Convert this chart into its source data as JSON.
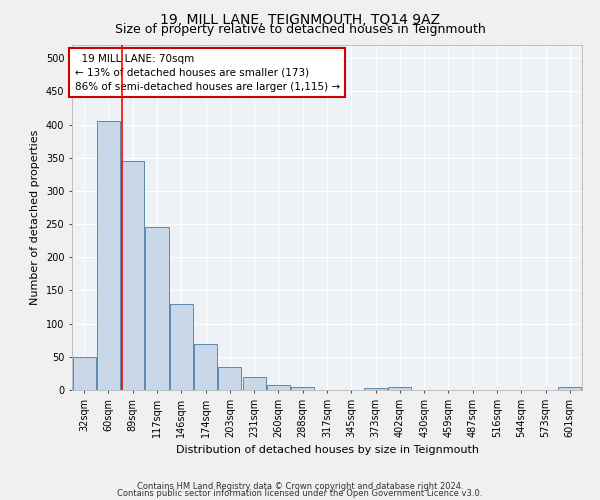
{
  "title": "19, MILL LANE, TEIGNMOUTH, TQ14 9AZ",
  "subtitle": "Size of property relative to detached houses in Teignmouth",
  "xlabel": "Distribution of detached houses by size in Teignmouth",
  "ylabel": "Number of detached properties",
  "footnote1": "Contains HM Land Registry data © Crown copyright and database right 2024.",
  "footnote2": "Contains public sector information licensed under the Open Government Licence v3.0.",
  "bar_labels": [
    "32sqm",
    "60sqm",
    "89sqm",
    "117sqm",
    "146sqm",
    "174sqm",
    "203sqm",
    "231sqm",
    "260sqm",
    "288sqm",
    "317sqm",
    "345sqm",
    "373sqm",
    "402sqm",
    "430sqm",
    "459sqm",
    "487sqm",
    "516sqm",
    "544sqm",
    "573sqm",
    "601sqm"
  ],
  "bar_values": [
    50,
    405,
    345,
    245,
    130,
    70,
    35,
    20,
    7,
    5,
    0,
    0,
    3,
    5,
    0,
    0,
    0,
    0,
    0,
    0,
    5
  ],
  "bar_color": "#c8d8e8",
  "bar_edge_color": "#5a8ab0",
  "ylim": [
    0,
    520
  ],
  "yticks": [
    0,
    50,
    100,
    150,
    200,
    250,
    300,
    350,
    400,
    450,
    500
  ],
  "red_line_x": 1.55,
  "annotation_text": "  19 MILL LANE: 70sqm\n← 13% of detached houses are smaller (173)\n86% of semi-detached houses are larger (1,115) →",
  "annotation_box_color": "#ffffff",
  "annotation_border_color": "#cc0000",
  "bg_color": "#eef2f6",
  "grid_color": "#ffffff",
  "title_fontsize": 10,
  "subtitle_fontsize": 9,
  "axis_label_fontsize": 8,
  "tick_fontsize": 7,
  "annotation_fontsize": 7.5,
  "footnote_fontsize": 6
}
